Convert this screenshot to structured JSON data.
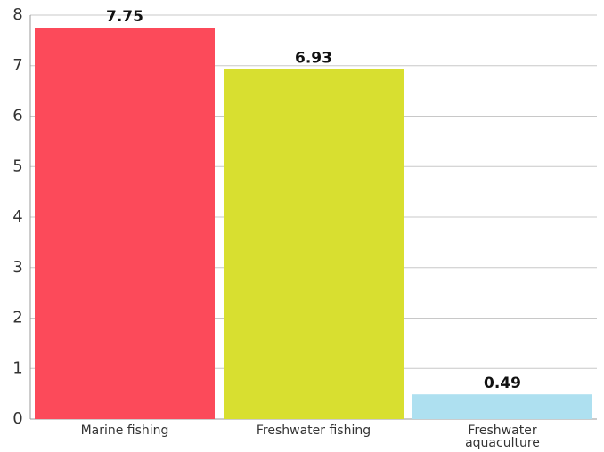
{
  "chart_data": {
    "type": "bar",
    "categories": [
      "Marine fishing",
      "Freshwater fishing",
      "Freshwater aquaculture"
    ],
    "values": [
      7.75,
      6.93,
      0.49
    ],
    "colors": [
      "#fc4a5a",
      "#d8df30",
      "#aee0f0"
    ],
    "ylim": [
      0,
      8
    ],
    "yticks": [
      0,
      1,
      2,
      3,
      4,
      5,
      6,
      7,
      8
    ],
    "grid": true
  }
}
